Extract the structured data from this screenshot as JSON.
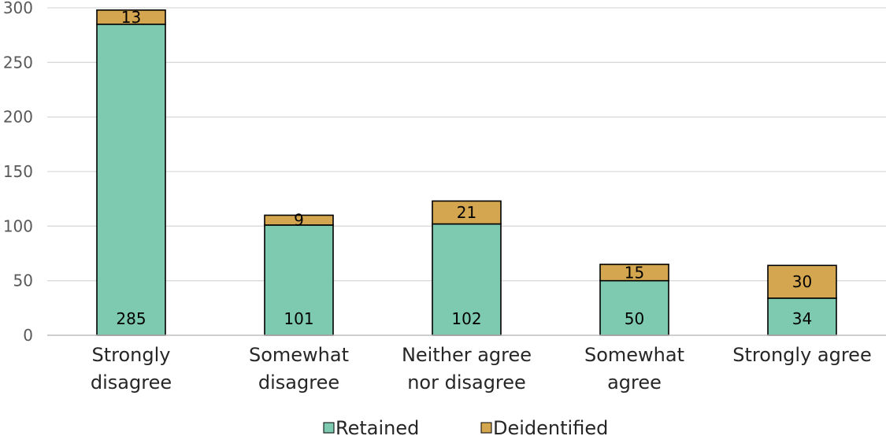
{
  "chart_data": {
    "type": "bar",
    "stacked": true,
    "title": "",
    "xlabel": "",
    "ylabel": "",
    "ylim": [
      0,
      300
    ],
    "yticks": [
      0,
      50,
      100,
      150,
      200,
      250,
      300
    ],
    "grid": true,
    "legend_position": "bottom",
    "categories": [
      [
        "Strongly",
        "disagree"
      ],
      [
        "Somewhat",
        "disagree"
      ],
      [
        "Neither agree",
        "nor disagree"
      ],
      [
        "Somewhat",
        "agree"
      ],
      [
        "Strongly agree"
      ]
    ],
    "series": [
      {
        "name": "Retained",
        "color": "#7ecab0",
        "values": [
          285,
          101,
          102,
          50,
          34
        ]
      },
      {
        "name": "Deidentified",
        "color": "#d4a650",
        "values": [
          13,
          9,
          21,
          15,
          30
        ]
      }
    ]
  }
}
